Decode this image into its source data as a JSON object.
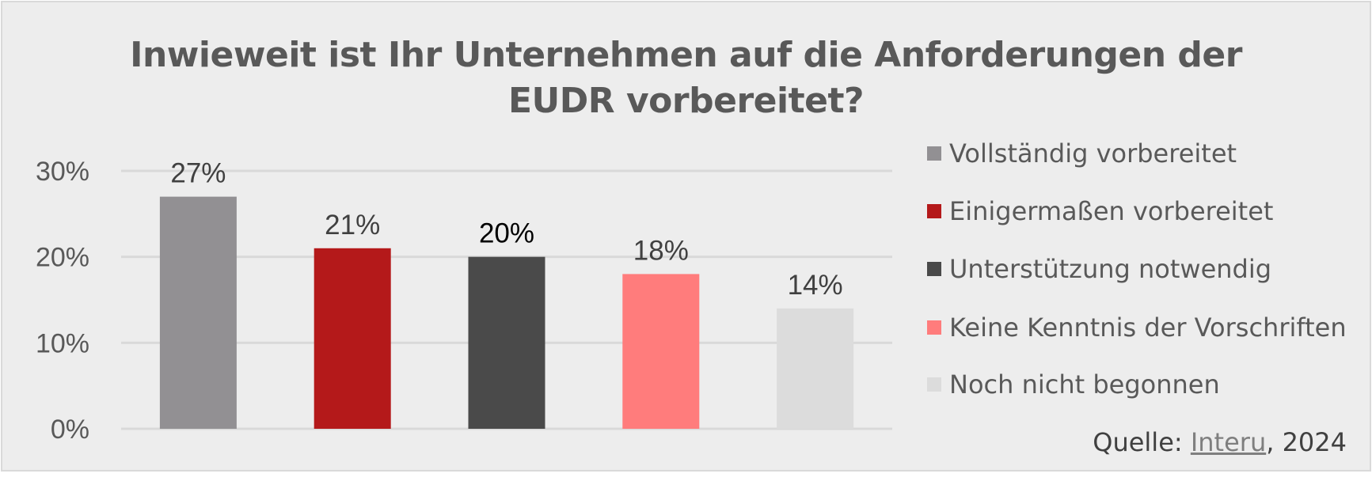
{
  "chart_data": {
    "type": "bar",
    "title_lines": [
      "Inwieweit ist Ihr Unternehmen auf die Anforderungen der",
      "EUDR vorbereitet?"
    ],
    "categories": [
      "Vollständig vorbereitet",
      "Einigermaßen vorbereitet",
      "Unterstützung notwendig",
      "Keine Kenntnis der Vorschriften",
      "Noch nicht begonnen"
    ],
    "values": [
      27,
      21,
      20,
      18,
      14
    ],
    "data_labels": [
      "27%",
      "21%",
      "20%",
      "18%",
      "14%"
    ],
    "colors": [
      "#929093",
      "#b4191a",
      "#4a4a4a",
      "#ff7c7c",
      "#dcdcdc"
    ],
    "label_colors": [
      "#404040",
      "#404040",
      "#000000",
      "#404040",
      "#404040"
    ],
    "ylim": [
      0,
      30
    ],
    "yticks": [
      0,
      10,
      20,
      30
    ],
    "ytick_labels": [
      "0%",
      "10%",
      "20%",
      "30%"
    ],
    "grid": true,
    "legend_position": "right",
    "xlabel": "",
    "ylabel": ""
  },
  "source": {
    "prefix": "Quelle: ",
    "link": "Interu",
    "suffix": ", 2024"
  }
}
